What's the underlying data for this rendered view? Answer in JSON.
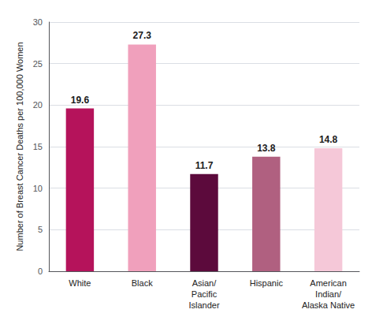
{
  "chart_data": {
    "type": "bar",
    "categories": [
      "White",
      "Black",
      "Asian/\nPacific\nIslander",
      "Hispanic",
      "American\nIndian/\nAlaska Native"
    ],
    "values": [
      19.6,
      27.3,
      11.7,
      13.8,
      14.8
    ],
    "colors": [
      "#b5135b",
      "#f0a0bc",
      "#5c0a3c",
      "#b06080",
      "#f5c8d8"
    ],
    "ylabel": "Number of Breast Cancer Deaths per 100,000 Women",
    "ylim": [
      0,
      30
    ],
    "yticks": [
      0,
      5,
      10,
      15,
      20,
      25,
      30
    ],
    "grid": true,
    "data_labels": true
  }
}
